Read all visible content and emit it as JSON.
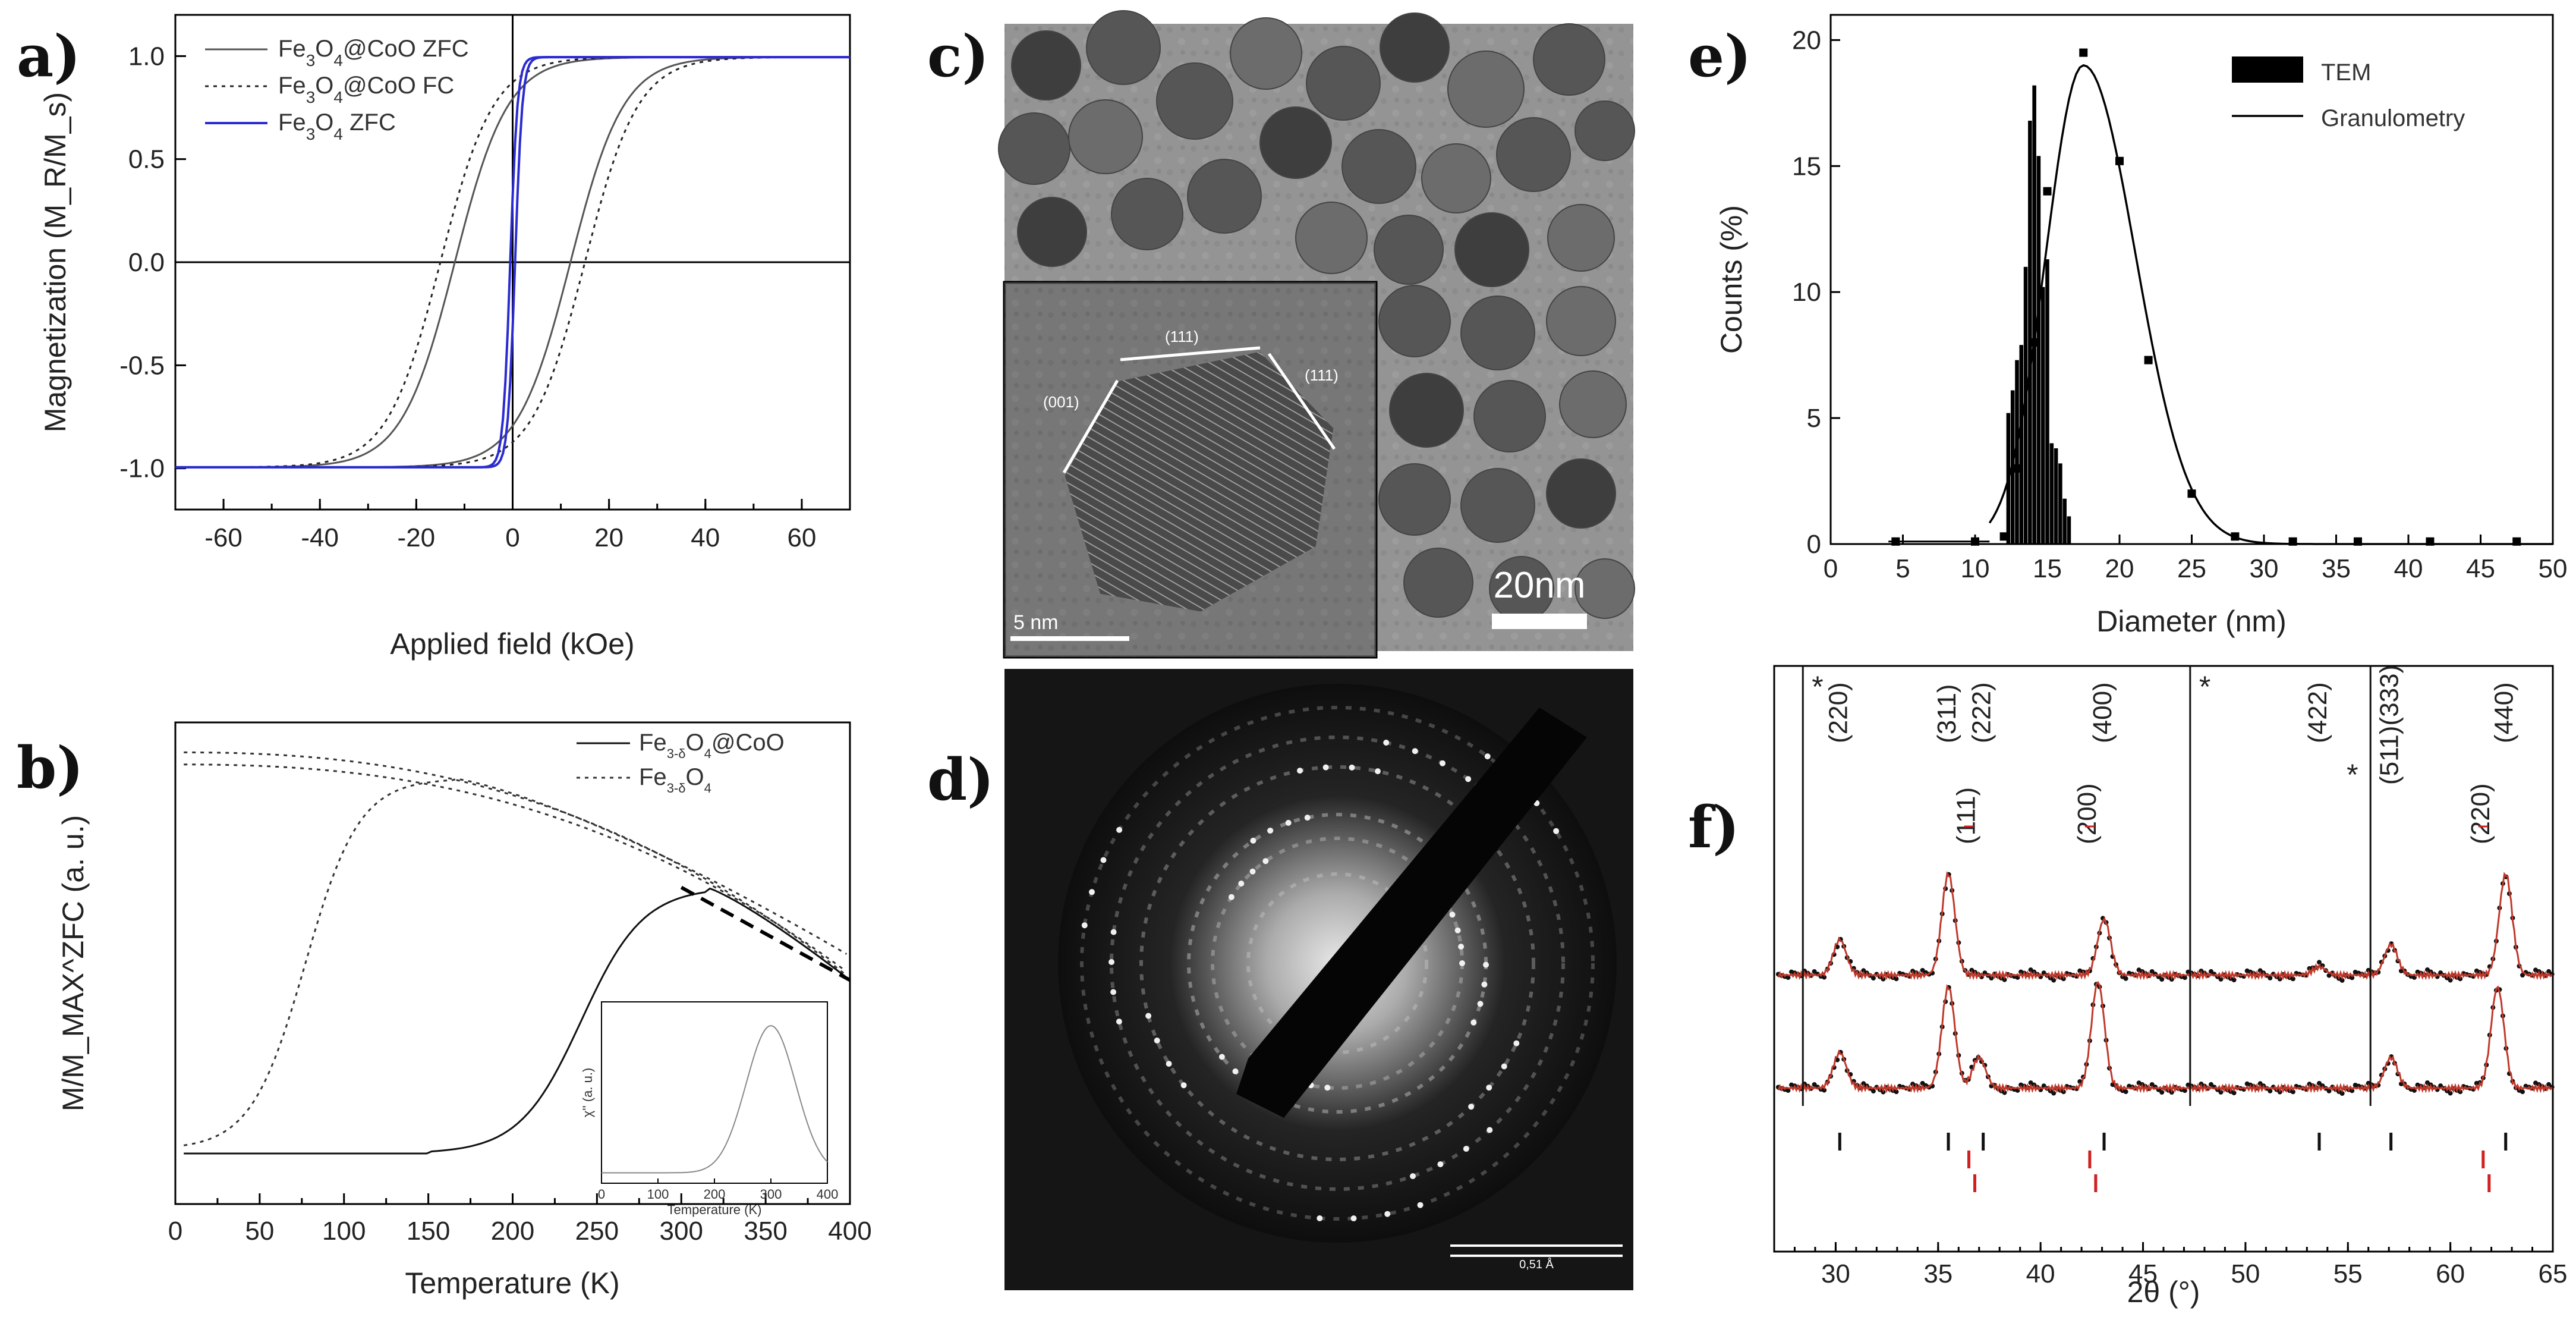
{
  "panels": {
    "a": "a)",
    "b": "b)",
    "c": "c)",
    "d": "d)",
    "e": "e)",
    "f": "f)"
  },
  "chart_data": [
    {
      "id": "a",
      "type": "line",
      "xlabel": "Applied field (kOe)",
      "ylabel": "Magnetization (M_R/M_s)",
      "xlim": [
        -70,
        70
      ],
      "ylim": [
        -1.2,
        1.2
      ],
      "xticks": [
        -60,
        -40,
        -20,
        0,
        20,
        40,
        60
      ],
      "yticks": [
        -1.0,
        -0.5,
        0.0,
        0.5,
        1.0
      ],
      "ytick_labels": [
        "-1.0",
        "-0.5",
        "0.0",
        "0.5",
        "1.0"
      ],
      "legend": [
        "Fe3O4@CoO ZFC",
        "Fe3O4@CoO FC",
        "Fe3O4 ZFC"
      ],
      "series": [
        {
          "name": "Fe3O4@CoO ZFC",
          "style": "solid",
          "color": "#555555",
          "coercivity_kOe": 12,
          "width": 11
        },
        {
          "name": "Fe3O4@CoO FC",
          "style": "dotted",
          "color": "#222222",
          "coercivity_kOe": 15,
          "shift_kOe": 0,
          "width": 11
        },
        {
          "name": "Fe3O4 ZFC",
          "style": "solid",
          "color": "#2b2bd0",
          "coercivity_kOe": 0.5,
          "width": 1.5
        }
      ]
    },
    {
      "id": "b",
      "type": "line",
      "xlabel": "Temperature (K)",
      "ylabel": "M/M_MAX^ZFC (a. u.)",
      "xlim": [
        0,
        400
      ],
      "xticks": [
        0,
        50,
        100,
        150,
        200,
        250,
        300,
        350,
        400
      ],
      "legend": [
        "Fe3-δO4@CoO",
        "Fe3-δO4"
      ],
      "series": [
        {
          "name": "Fe3-δO4@CoO",
          "style": "solid",
          "peak_K": 315
        },
        {
          "name": "Fe3-δO4",
          "style": "dotted",
          "peak_K": 165
        }
      ],
      "inset": {
        "xlabel": "Temperature (K)",
        "ylabel": "χ'' (a. u.)",
        "xticks": [
          0,
          100,
          200,
          300,
          400
        ],
        "peak_K": 300
      }
    },
    {
      "id": "e",
      "type": "bar",
      "xlabel": "Diameter (nm)",
      "ylabel": "Counts (%)",
      "xlim": [
        0,
        50
      ],
      "ylim": [
        0,
        21
      ],
      "xticks": [
        0,
        5,
        10,
        15,
        20,
        25,
        30,
        35,
        40,
        45,
        50
      ],
      "yticks": [
        0,
        5,
        10,
        15,
        20
      ],
      "legend": [
        "TEM",
        "Granulometry"
      ],
      "tem_bins_nm": [
        12.3,
        12.6,
        12.9,
        13.2,
        13.5,
        13.8,
        14.1,
        14.4,
        14.7,
        15.0,
        15.3,
        15.6,
        15.9,
        16.2,
        16.5
      ],
      "tem_counts": [
        5.2,
        6.1,
        7.3,
        7.9,
        11.0,
        16.8,
        18.2,
        15.4,
        10.2,
        11.3,
        4.0,
        3.8,
        3.2,
        1.8,
        1.1
      ],
      "granulometry_points": {
        "x": [
          4.5,
          10,
          12,
          13,
          14,
          15,
          17.5,
          20,
          22,
          25,
          28,
          32,
          36.5,
          41.5,
          47.5
        ],
        "y": [
          0.1,
          0.1,
          0.3,
          3,
          8,
          14,
          19.5,
          15.2,
          7.3,
          2.0,
          0.3,
          0.1,
          0.1,
          0.1,
          0.1
        ]
      },
      "granulometry_fit": {
        "center_nm": 17.5,
        "peak": 19.0
      }
    },
    {
      "id": "f",
      "type": "line",
      "xlabel": "2θ (°)",
      "xlim": [
        27,
        65
      ],
      "xticks": [
        30,
        35,
        40,
        45,
        50,
        55,
        60,
        65
      ],
      "peaks_black": [
        {
          "label": "(220)",
          "two_theta": 30.2
        },
        {
          "label": "(311)",
          "two_theta": 35.5
        },
        {
          "label": "(222)",
          "two_theta": 37.2
        },
        {
          "label": "(400)",
          "two_theta": 43.1
        },
        {
          "label": "(422)",
          "two_theta": 53.6
        },
        {
          "label": "(511)(333)",
          "two_theta": 57.1
        },
        {
          "label": "(440)",
          "two_theta": 62.7
        }
      ],
      "peaks_red": [
        {
          "label": "(111)",
          "two_theta": 36.5
        },
        {
          "label": "(200)",
          "two_theta": 42.4
        },
        {
          "label": "(220)",
          "two_theta": 61.6
        }
      ],
      "star_peaks_deg": [
        28.4,
        47.3,
        56.1
      ],
      "star_mark": "*"
    }
  ],
  "images": {
    "c": {
      "scale_bar": "20nm",
      "inset_scale_bar": "5 nm",
      "facets": [
        "(111)",
        "(001)",
        "(111)"
      ]
    },
    "d": {
      "scale_label": "0,51 Å"
    }
  }
}
